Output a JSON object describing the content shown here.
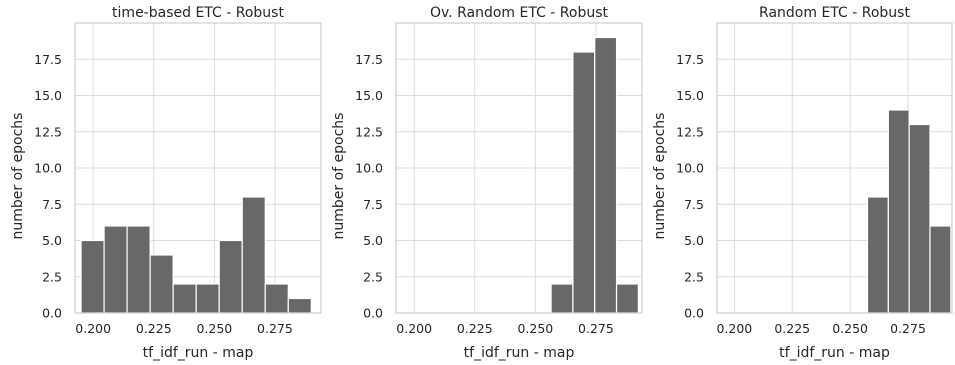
{
  "chart_data": [
    {
      "type": "bar",
      "title": "time-based ETC - Robust",
      "xlabel": "tf_idf_run - map",
      "ylabel": "number of epochs",
      "xlim": [
        0.1925,
        0.294
      ],
      "ylim": [
        0,
        20
      ],
      "x_ticks": [
        "0.200",
        "0.225",
        "0.250",
        "0.275"
      ],
      "y_ticks": [
        "0.0",
        "2.5",
        "5.0",
        "7.5",
        "10.0",
        "12.5",
        "15.0",
        "17.5"
      ],
      "grid": true,
      "bin_edges": [
        0.195,
        0.2045,
        0.214,
        0.2235,
        0.233,
        0.2425,
        0.252,
        0.2615,
        0.271,
        0.2805,
        0.29
      ],
      "values": [
        5,
        6,
        6,
        4,
        2,
        2,
        5,
        8,
        2,
        1
      ]
    },
    {
      "type": "bar",
      "title": "Ov. Random ETC - Robust",
      "xlabel": "tf_idf_run - map",
      "ylabel": "number of epochs",
      "xlim": [
        0.1925,
        0.294
      ],
      "ylim": [
        0,
        20
      ],
      "x_ticks": [
        "0.200",
        "0.225",
        "0.250",
        "0.275"
      ],
      "y_ticks": [
        "0.0",
        "2.5",
        "5.0",
        "7.5",
        "10.0",
        "12.5",
        "15.0",
        "17.5"
      ],
      "grid": true,
      "bin_edges": [
        0.2565,
        0.2655,
        0.2745,
        0.2835,
        0.2925
      ],
      "values": [
        2,
        18,
        19,
        2
      ]
    },
    {
      "type": "bar",
      "title": "Random ETC - Robust",
      "xlabel": "tf_idf_run - map",
      "ylabel": "number of epochs",
      "xlim": [
        0.1925,
        0.294
      ],
      "ylim": [
        0,
        20
      ],
      "x_ticks": [
        "0.200",
        "0.225",
        "0.250",
        "0.275"
      ],
      "y_ticks": [
        "0.0",
        "2.5",
        "5.0",
        "7.5",
        "10.0",
        "12.5",
        "15.0",
        "17.5"
      ],
      "grid": true,
      "bin_edges": [
        0.2575,
        0.2665,
        0.2755,
        0.2845,
        0.2935
      ],
      "values": [
        8,
        14,
        13,
        6
      ]
    }
  ],
  "colors": {
    "bar": "#686868",
    "bar_edge": "#ffffff",
    "grid": "#dcdcdc",
    "frame": "#cfcfcf",
    "text": "#262626"
  }
}
